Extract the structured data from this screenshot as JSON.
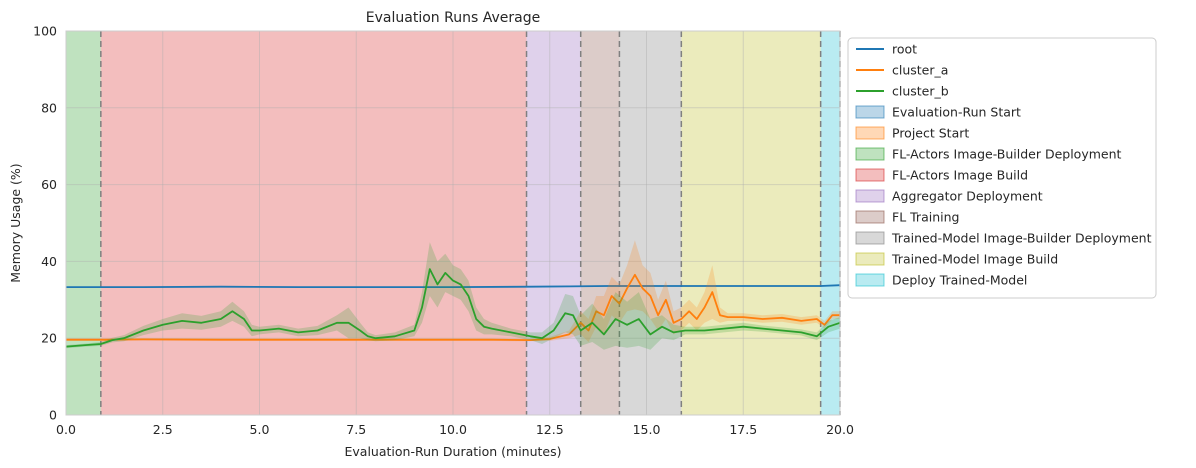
{
  "chart_data": {
    "type": "line",
    "title": "Evaluation Runs Average",
    "xlabel": "Evaluation-Run Duration (minutes)",
    "ylabel": "Memory Usage (%)",
    "xlim": [
      0,
      20
    ],
    "ylim": [
      0,
      100
    ],
    "xticks": [
      0,
      2.5,
      5,
      7.5,
      10,
      12.5,
      15,
      17.5,
      20
    ],
    "xtick_labels": [
      "0.0",
      "2.5",
      "5.0",
      "7.5",
      "10.0",
      "12.5",
      "15.0",
      "17.5",
      "20.0"
    ],
    "yticks": [
      0,
      20,
      40,
      60,
      80,
      100
    ],
    "ytick_labels": [
      "0",
      "20",
      "40",
      "60",
      "80",
      "100"
    ],
    "grid": true,
    "legend_position": "outside right, top",
    "series": [
      {
        "name": "root",
        "color": "#1f77b4",
        "x": [
          0,
          2,
          4,
          6,
          8,
          10,
          12,
          13,
          14,
          16,
          18,
          19.5,
          20
        ],
        "y": [
          33.3,
          33.3,
          33.4,
          33.3,
          33.3,
          33.3,
          33.4,
          33.5,
          33.6,
          33.6,
          33.6,
          33.6,
          33.8
        ],
        "band": [
          0.2,
          0.2,
          0.2,
          0.2,
          0.2,
          0.2,
          0.2,
          0.2,
          0.2,
          0.2,
          0.2,
          0.2,
          0.2
        ]
      },
      {
        "name": "cluster_a",
        "color": "#ff7f0e",
        "x": [
          0,
          1,
          2,
          4,
          6,
          8,
          10,
          11,
          12,
          12.5,
          13,
          13.3,
          13.5,
          13.7,
          13.9,
          14.1,
          14.3,
          14.5,
          14.7,
          14.9,
          15.1,
          15.3,
          15.5,
          15.7,
          15.9,
          16.1,
          16.3,
          16.5,
          16.7,
          16.9,
          17.1,
          17.5,
          18,
          18.5,
          19,
          19.4,
          19.6,
          19.8,
          20
        ],
        "y": [
          19.6,
          19.6,
          19.7,
          19.6,
          19.6,
          19.6,
          19.6,
          19.6,
          19.5,
          19.8,
          21,
          24,
          22,
          27,
          26,
          31,
          29,
          33,
          36.5,
          33,
          31,
          26,
          30,
          24,
          25,
          27,
          25,
          28,
          32,
          26,
          25.5,
          25.5,
          25,
          25.3,
          24.5,
          25,
          23.5,
          26,
          26
        ],
        "band": [
          0.3,
          0.3,
          0.3,
          0.3,
          0.3,
          0.3,
          0.3,
          0.3,
          0.3,
          0.5,
          1,
          3,
          3,
          4,
          5,
          5,
          5,
          6,
          9,
          6,
          6,
          4,
          5,
          3,
          3,
          3,
          3,
          4,
          7,
          2,
          1,
          1,
          1,
          1,
          1,
          1,
          1,
          1,
          1
        ]
      },
      {
        "name": "cluster_b",
        "color": "#2ca02c",
        "x": [
          0,
          0.5,
          0.9,
          1.2,
          1.5,
          2,
          2.5,
          3,
          3.5,
          4,
          4.3,
          4.6,
          4.8,
          5,
          5.5,
          6,
          6.5,
          7,
          7.3,
          7.6,
          7.8,
          8,
          8.5,
          9,
          9.2,
          9.4,
          9.6,
          9.8,
          10,
          10.2,
          10.4,
          10.6,
          10.8,
          11,
          11.5,
          12,
          12.3,
          12.6,
          12.9,
          13.1,
          13.3,
          13.6,
          13.9,
          14.2,
          14.5,
          14.8,
          15.1,
          15.4,
          15.7,
          16,
          16.5,
          17,
          17.5,
          18,
          18.5,
          19,
          19.4,
          19.7,
          20
        ],
        "y": [
          17.8,
          18.2,
          18.5,
          19.5,
          20,
          22,
          23.5,
          24.5,
          24,
          25,
          27,
          25,
          22,
          22,
          22.5,
          21.5,
          22,
          24,
          24,
          22,
          20.5,
          20,
          20.5,
          22,
          28,
          38,
          34,
          37,
          35,
          34,
          31,
          25,
          23,
          22.5,
          21.5,
          20.5,
          20,
          22,
          26.5,
          26,
          22,
          24,
          21,
          25,
          23.5,
          25,
          21,
          23,
          21.5,
          22,
          22,
          22.5,
          23,
          22.5,
          22,
          21.5,
          20.5,
          23,
          24
        ],
        "band": [
          0.4,
          0.4,
          0.5,
          0.6,
          0.8,
          1.2,
          1.5,
          2,
          1.8,
          2,
          2.5,
          2,
          1.5,
          1,
          1,
          1,
          1.2,
          2,
          4,
          2,
          1,
          0.8,
          1,
          1.5,
          4,
          7,
          6,
          5,
          4,
          4,
          4,
          3,
          2,
          1.5,
          1,
          1,
          1.5,
          2,
          5,
          5,
          4,
          5,
          4,
          7,
          6,
          7,
          4,
          3,
          2,
          1,
          1,
          1,
          1,
          0.8,
          0.8,
          0.8,
          1,
          1.5,
          1.5
        ]
      }
    ],
    "phases": [
      {
        "name": "Evaluation-Run Start",
        "color": "#1f77b4",
        "start": 0,
        "end": 0
      },
      {
        "name": "Project Start",
        "color": "#ff7f0e",
        "start": 0,
        "end": 0
      },
      {
        "name": "FL-Actors Image-Builder Deployment",
        "color": "#2ca02c",
        "start": 0,
        "end": 0.9
      },
      {
        "name": "FL-Actors Image Build",
        "color": "#d62728",
        "start": 0.9,
        "end": 11.9
      },
      {
        "name": "Aggregator Deployment",
        "color": "#9467bd",
        "start": 11.9,
        "end": 13.3
      },
      {
        "name": "FL Training",
        "color": "#8c564b",
        "start": 13.3,
        "end": 14.3
      },
      {
        "name": "Trained-Model Image-Builder Deployment",
        "color": "#7f7f7f",
        "start": 14.3,
        "end": 15.9
      },
      {
        "name": "Trained-Model Image Build",
        "color": "#bcbd22",
        "start": 15.9,
        "end": 19.5
      },
      {
        "name": "Deploy Trained-Model",
        "color": "#17becf",
        "start": 19.5,
        "end": 20
      }
    ],
    "phase_boundaries": [
      0.9,
      11.9,
      13.3,
      14.3,
      15.9,
      19.5,
      20
    ]
  }
}
